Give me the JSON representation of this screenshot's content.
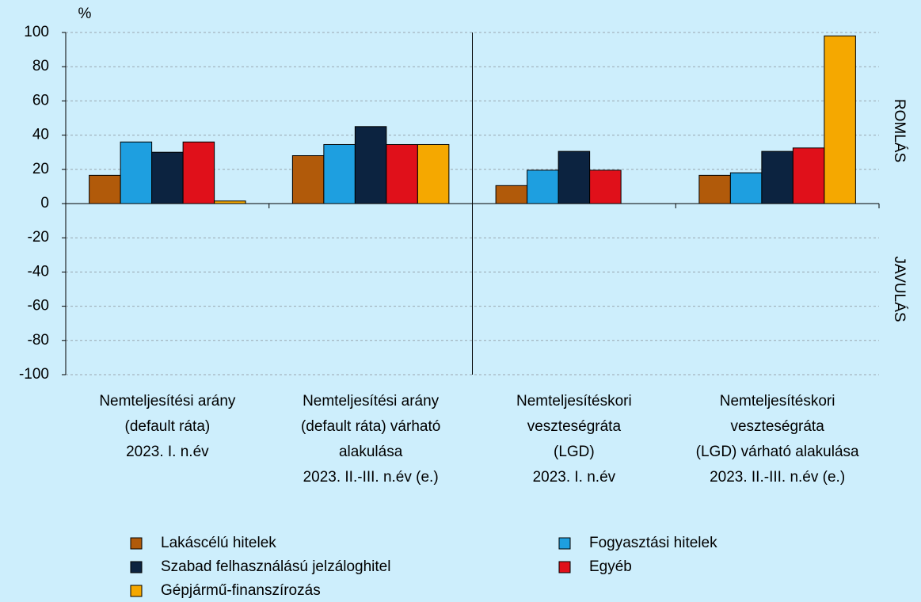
{
  "chart_data": {
    "type": "bar",
    "y_label": "%",
    "annotations": [
      "ROMLÁS",
      "JAVULÁS"
    ],
    "categories": [
      "Nemteljesítési arány\n(default ráta)\n2023. I. n.év",
      "Nemteljesítési arány\n(default ráta) várható\nalakulása\n2023. II.-III. n.év (e.)",
      "Nemteljesítéskori\nveszteségráta\n(LGD)\n2023. I. n.év",
      "Nemteljesítéskori\nveszteségráta\n(LGD) várható alakulása\n2023. II.-III. n.év (e.)"
    ],
    "series": [
      {
        "name": "Lakáscélú hitelek",
        "color": "#b15a0a",
        "values": [
          16.5,
          28,
          10.5,
          16.5
        ]
      },
      {
        "name": "Fogyasztási hitelek",
        "color": "#1e9fe0",
        "values": [
          36,
          34.5,
          19.5,
          18
        ]
      },
      {
        "name": "Szabad felhasználású jelzáloghitel",
        "color": "#0c2340",
        "values": [
          30,
          45,
          30.5,
          30.5
        ]
      },
      {
        "name": "Egyéb",
        "color": "#e0101a",
        "values": [
          36,
          34.5,
          19.5,
          32.5
        ]
      },
      {
        "name": "Gépjármű-finanszírozás",
        "color": "#f5a800",
        "values": [
          1.5,
          34.5,
          null,
          98
        ]
      }
    ],
    "ylim": [
      -100,
      100
    ],
    "yticks": [
      -100,
      -80,
      -60,
      -40,
      -20,
      0,
      20,
      40,
      60,
      80,
      100
    ],
    "grid": true
  }
}
